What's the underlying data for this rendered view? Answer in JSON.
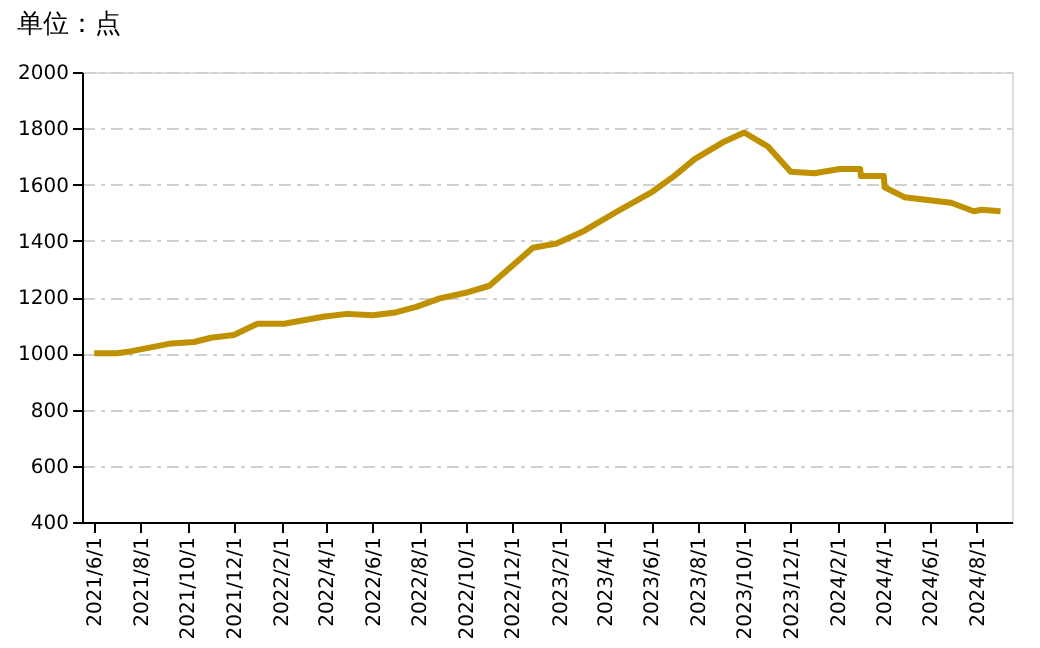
{
  "chart_data": {
    "type": "line",
    "title": "单位：点",
    "x": [
      "2021-06-01",
      "2021-07-01",
      "2021-07-15",
      "2021-09-10",
      "2021-10-10",
      "2021-11-01",
      "2021-12-01",
      "2022-01-01",
      "2022-02-05",
      "2022-03-28",
      "2022-04-28",
      "2022-06-01",
      "2022-07-01",
      "2022-07-28",
      "2022-08-28",
      "2022-10-01",
      "2022-11-01",
      "2022-12-28",
      "2023-01-28",
      "2023-03-05",
      "2023-04-18",
      "2023-06-03",
      "2023-07-01",
      "2023-07-28",
      "2023-09-03",
      "2023-10-01",
      "2023-11-01",
      "2023-12-01",
      "2024-01-01",
      "2024-02-03",
      "2024-03-01",
      "2024-03-02",
      "2024-04-01",
      "2024-04-02",
      "2024-04-28",
      "2024-06-28",
      "2024-07-28",
      "2024-08-07",
      "2024-09-01"
    ],
    "series": [
      {
        "color": "#bf9000",
        "values": [
          1000,
          1000,
          1005,
          1035,
          1040,
          1055,
          1065,
          1105,
          1105,
          1130,
          1140,
          1135,
          1145,
          1165,
          1195,
          1215,
          1240,
          1375,
          1390,
          1435,
          1505,
          1575,
          1630,
          1690,
          1750,
          1785,
          1735,
          1645,
          1640,
          1655,
          1655,
          1630,
          1630,
          1590,
          1555,
          1535,
          1505,
          1510,
          1505
        ]
      }
    ],
    "xlim": [
      "2021-05-16",
      "2024-09-16"
    ],
    "xticks": [
      {
        "value": "2021-06-01",
        "label": "2021/6/1"
      },
      {
        "value": "2021-08-01",
        "label": "2021/8/1"
      },
      {
        "value": "2021-10-01",
        "label": "2021/10/1"
      },
      {
        "value": "2021-12-01",
        "label": "2021/12/1"
      },
      {
        "value": "2022-02-01",
        "label": "2022/2/1"
      },
      {
        "value": "2022-04-01",
        "label": "2022/4/1"
      },
      {
        "value": "2022-06-01",
        "label": "2022/6/1"
      },
      {
        "value": "2022-08-01",
        "label": "2022/8/1"
      },
      {
        "value": "2022-10-01",
        "label": "2022/10/1"
      },
      {
        "value": "2022-12-01",
        "label": "2022/12/1"
      },
      {
        "value": "2023-02-01",
        "label": "2023/2/1"
      },
      {
        "value": "2023-04-01",
        "label": "2023/4/1"
      },
      {
        "value": "2023-06-01",
        "label": "2023/6/1"
      },
      {
        "value": "2023-08-01",
        "label": "2023/8/1"
      },
      {
        "value": "2023-10-01",
        "label": "2023/10/1"
      },
      {
        "value": "2023-12-01",
        "label": "2023/12/1"
      },
      {
        "value": "2024-02-01",
        "label": "2024/2/1"
      },
      {
        "value": "2024-04-01",
        "label": "2024/4/1"
      },
      {
        "value": "2024-06-01",
        "label": "2024/6/1"
      },
      {
        "value": "2024-08-01",
        "label": "2024/8/1"
      }
    ],
    "ylim": [
      400,
      2000
    ],
    "yticks": [
      400,
      600,
      800,
      1000,
      1200,
      1400,
      1600,
      1800,
      2000
    ],
    "grid": "y",
    "marker": "none",
    "line_style": "solid"
  }
}
